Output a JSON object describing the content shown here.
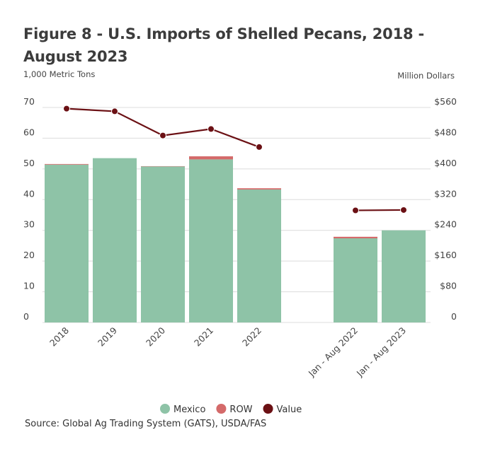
{
  "title": "Figure 8 - U.S. Imports of Shelled Pecans, 2018 - August 2023",
  "source": "Source: Global Ag Trading System (GATS), USDA/FAS",
  "chart_data": {
    "type": "bar",
    "stacked": true,
    "title": "Figure 8 - U.S. Imports of Shelled Pecans, 2018 - August 2023",
    "categories": [
      "2018",
      "2019",
      "2020",
      "2021",
      "2022",
      "Jan - Aug 2022",
      "Jan - Aug 2023"
    ],
    "series": [
      {
        "name": "Mexico",
        "type": "bar",
        "axis": "left",
        "color": "#8ec3a7",
        "values": [
          51.4,
          53.5,
          50.8,
          53.1,
          43.3,
          27.4,
          30.0
        ]
      },
      {
        "name": "ROW",
        "type": "bar",
        "axis": "left",
        "color": "#d46a6a",
        "values": [
          0.2,
          0.0,
          0.1,
          1.0,
          0.4,
          0.5,
          0.0
        ]
      },
      {
        "name": "Value",
        "type": "line",
        "axis": "right",
        "color": "#6b1014",
        "values": [
          557,
          550,
          487,
          504,
          457,
          292,
          293
        ]
      }
    ],
    "ylabel": "1,000 Metric Tons",
    "ylim": [
      0,
      70
    ],
    "yticks": [
      "0",
      "10",
      "20",
      "30",
      "40",
      "50",
      "60",
      "70"
    ],
    "y2label": "Million Dollars",
    "y2lim": [
      0,
      560
    ],
    "y2ticks": [
      "0",
      "$80",
      "$160",
      "$240",
      "$320",
      "$400",
      "$480",
      "$560"
    ],
    "grid": true,
    "legend": "bottom"
  }
}
